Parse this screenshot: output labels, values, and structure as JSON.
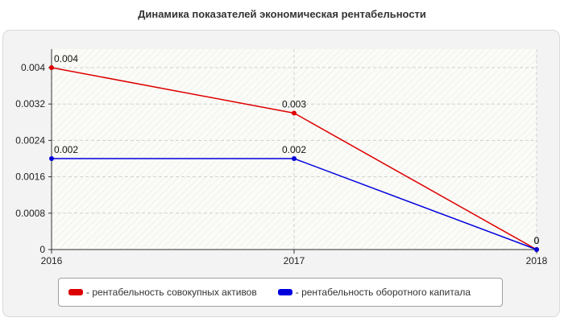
{
  "chart_data": {
    "type": "line",
    "title": "Динамика показателей экономическая рентабельности",
    "categories": [
      "2016",
      "2017",
      "2018"
    ],
    "ylim": [
      0,
      0.004
    ],
    "y_ticks": [
      "0",
      "0.0008",
      "0.0016",
      "0.0024",
      "0.0032",
      "0.004"
    ],
    "grid": true,
    "legend_position": "bottom",
    "series": [
      {
        "name": "- рентабельность совокупных активов",
        "color": "#dd0000",
        "values": [
          0.004,
          0.003,
          0
        ],
        "labels": [
          "0.004",
          "0.003",
          "0"
        ]
      },
      {
        "name": "- рентабельность оборотного капитала",
        "color": "#0000dd",
        "values": [
          0.002,
          0.002,
          0
        ],
        "labels": [
          "0.002",
          "0.002",
          "0"
        ]
      }
    ]
  }
}
